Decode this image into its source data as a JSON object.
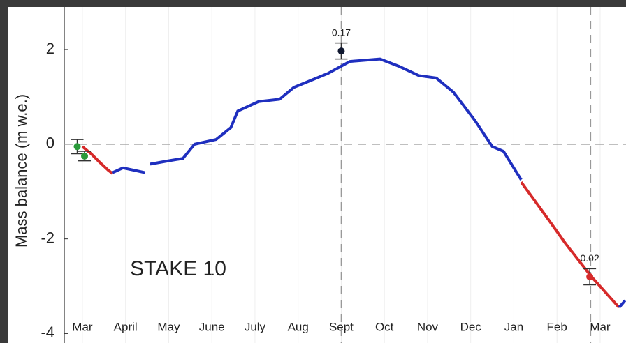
{
  "chart_data": {
    "type": "line",
    "ylabel": "Mass balance (m w.e.)",
    "annotation": "STAKE 10",
    "xlim": [
      -0.42,
      12.6
    ],
    "ylim": [
      -4.2,
      2.9
    ],
    "yticks": [
      -4,
      -2,
      0,
      2
    ],
    "xticks": [
      {
        "value": 0,
        "label": "Mar"
      },
      {
        "value": 1,
        "label": "April"
      },
      {
        "value": 2,
        "label": "May"
      },
      {
        "value": 3,
        "label": "June"
      },
      {
        "value": 4,
        "label": "July"
      },
      {
        "value": 5,
        "label": "Aug"
      },
      {
        "value": 6,
        "label": "Sept"
      },
      {
        "value": 7,
        "label": "Oct"
      },
      {
        "value": 8,
        "label": "Nov"
      },
      {
        "value": 9,
        "label": "Dec"
      },
      {
        "value": 10,
        "label": "Jan"
      },
      {
        "value": 11,
        "label": "Feb"
      },
      {
        "value": 12,
        "label": "Mar"
      }
    ],
    "grid": true,
    "hlines": [
      0
    ],
    "vlines": [
      6,
      11.78
    ],
    "series": [
      {
        "color": "#d62a2a",
        "x": [
          0,
          0.2,
          0.4,
          0.6,
          0.7
        ],
        "values": [
          -0.05,
          -0.2,
          -0.38,
          -0.55,
          -0.62
        ]
      },
      {
        "color": "#1f2fbf",
        "x": [
          0.7,
          0.94,
          1.2,
          1.45,
          1.5,
          1.57,
          2.0,
          2.33,
          2.6,
          3.1,
          3.44,
          3.6,
          4.08,
          4.57,
          4.9,
          5.3,
          5.7,
          6.2,
          6.9,
          7.33,
          7.8,
          8.2,
          8.6,
          9.1,
          9.5,
          9.76,
          10.17
        ],
        "values": [
          -0.6,
          -0.5,
          -0.55,
          -0.6,
          null,
          -0.42,
          -0.35,
          -0.3,
          0,
          0.1,
          0.35,
          0.7,
          0.9,
          0.95,
          1.2,
          1.35,
          1.5,
          1.75,
          1.8,
          1.65,
          1.45,
          1.4,
          1.1,
          0.5,
          -0.05,
          -0.15,
          -0.75
        ]
      },
      {
        "color": "#d62a2a",
        "x": [
          10.17,
          10.73,
          11.2,
          11.8,
          12.44
        ],
        "values": [
          -0.8,
          -1.5,
          -2.1,
          -2.8,
          -3.45
        ]
      },
      {
        "color": "#1f2fbf",
        "x": [
          12.44,
          12.58
        ],
        "values": [
          -3.45,
          -3.3
        ]
      }
    ],
    "points": [
      {
        "color": "#2a9a3a",
        "x": -0.12,
        "value": -0.05,
        "error": 0.15
      },
      {
        "color": "#2a9a3a",
        "x": 0.05,
        "value": -0.25,
        "error": 0.1
      },
      {
        "color": "#101830",
        "x": 6.0,
        "value": 1.97,
        "error": 0.17,
        "label": "0.17"
      },
      {
        "color": "#d62a2a",
        "x": 11.76,
        "value": -2.8,
        "error": 0.17,
        "label": "0.02"
      }
    ]
  }
}
